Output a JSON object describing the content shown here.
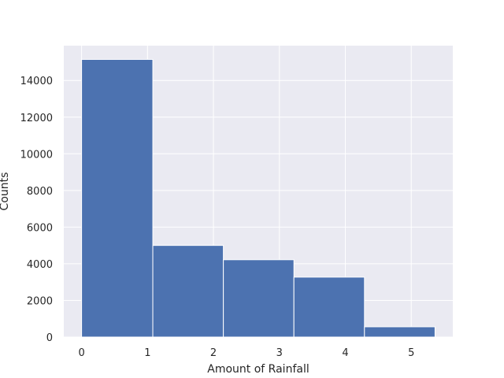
{
  "chart_data": {
    "type": "bar",
    "title": "",
    "xlabel": "Amount of Rainfall",
    "ylabel": "Counts",
    "bins": [
      {
        "x0": 0.0,
        "x1": 1.08,
        "value": 15150
      },
      {
        "x0": 1.08,
        "x1": 2.15,
        "value": 5000
      },
      {
        "x0": 2.15,
        "x1": 3.22,
        "value": 4220
      },
      {
        "x0": 3.22,
        "x1": 4.29,
        "value": 3270
      },
      {
        "x0": 4.29,
        "x1": 5.36,
        "value": 560
      }
    ],
    "xlim": [
      -0.27,
      5.63
    ],
    "ylim": [
      0,
      15900
    ],
    "xticks": [
      0,
      1,
      2,
      3,
      4,
      5
    ],
    "yticks": [
      0,
      2000,
      4000,
      6000,
      8000,
      10000,
      12000,
      14000
    ],
    "xtick_labels": [
      "0",
      "1",
      "2",
      "3",
      "4",
      "5"
    ],
    "ytick_labels": [
      "0",
      "2000",
      "4000",
      "6000",
      "8000",
      "10000",
      "12000",
      "14000"
    ],
    "grid": true,
    "colors": {
      "bar": "#4c72b0",
      "background": "#eaeaf2",
      "grid": "#ffffff"
    }
  }
}
